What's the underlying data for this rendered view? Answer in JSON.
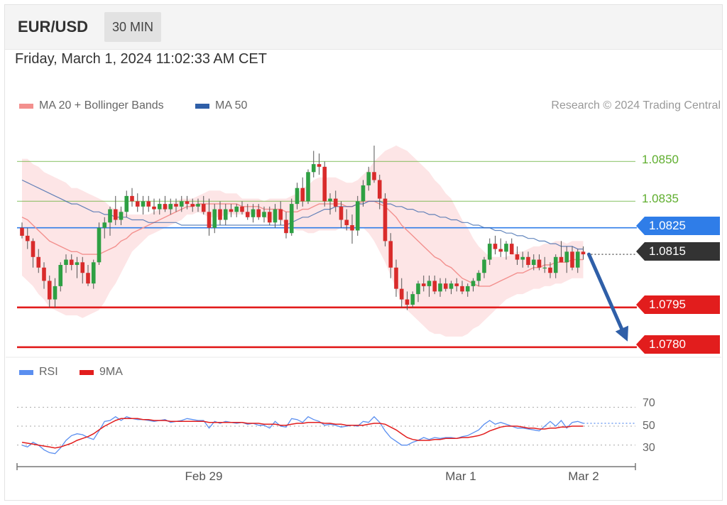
{
  "header": {
    "symbol": "EUR/USD",
    "timeframe": "30 MIN"
  },
  "datetime": "Friday, March 1, 2024 11:02:33 AM CET",
  "legend": {
    "ma20_label": "MA 20 + Bollinger Bands",
    "ma50_label": "MA 50",
    "credit": "Research © 2024 Trading Central"
  },
  "colors": {
    "ma20": "#f3908e",
    "ma50": "#2f5fa8",
    "bands": "#fde1e2",
    "bull": "#2ea043",
    "bear": "#d92b2b",
    "resistance": "#5fae2e",
    "pivot": "#2f7de8",
    "support": "#e21d1d",
    "current": "#333333",
    "rsi": "#5b8ff0",
    "rsi_ma": "#e21d1d"
  },
  "levels": {
    "resistance": [
      "1.0850",
      "1.0835"
    ],
    "pivot": "1.0825",
    "current": "1.0815",
    "support": [
      "1.0795",
      "1.0780"
    ]
  },
  "rsi_legend": {
    "rsi_label": "RSI",
    "ma_label": "9MA"
  },
  "rsi_levels": [
    "70",
    "50",
    "30"
  ],
  "x_ticks": [
    "Feb 29",
    "Mar 1",
    "Mar 2"
  ],
  "chart_data": {
    "type": "candlestick",
    "ylim": [
      1.0777,
      1.086
    ],
    "candles_ohlc": [
      [
        1.0825,
        1.0827,
        1.0821,
        1.0822
      ],
      [
        1.0822,
        1.0825,
        1.0817,
        1.082
      ],
      [
        1.082,
        1.0821,
        1.081,
        1.0814
      ],
      [
        1.0814,
        1.0817,
        1.0808,
        1.081
      ],
      [
        1.081,
        1.0812,
        1.0802,
        1.0805
      ],
      [
        1.0805,
        1.0807,
        1.0795,
        1.0798
      ],
      [
        1.0798,
        1.0806,
        1.0795,
        1.0803
      ],
      [
        1.0803,
        1.0812,
        1.0801,
        1.0811
      ],
      [
        1.0811,
        1.0815,
        1.0808,
        1.0813
      ],
      [
        1.0813,
        1.0815,
        1.0809,
        1.0811
      ],
      [
        1.0811,
        1.0814,
        1.0806,
        1.0812
      ],
      [
        1.0812,
        1.0814,
        1.0804,
        1.0808
      ],
      [
        1.0808,
        1.0811,
        1.0803,
        1.0804
      ],
      [
        1.0804,
        1.0813,
        1.0802,
        1.0812
      ],
      [
        1.0812,
        1.0827,
        1.0811,
        1.0825
      ],
      [
        1.0825,
        1.0829,
        1.0821,
        1.0827
      ],
      [
        1.0827,
        1.0833,
        1.0822,
        1.0832
      ],
      [
        1.0832,
        1.0837,
        1.0826,
        1.0828
      ],
      [
        1.0828,
        1.0833,
        1.0826,
        1.0831
      ],
      [
        1.0831,
        1.0839,
        1.0829,
        1.0837
      ],
      [
        1.0837,
        1.084,
        1.0833,
        1.0835
      ],
      [
        1.0835,
        1.0838,
        1.0831,
        1.0833
      ],
      [
        1.0833,
        1.0837,
        1.083,
        1.0835
      ],
      [
        1.0835,
        1.0837,
        1.0831,
        1.0833
      ],
      [
        1.0833,
        1.0836,
        1.083,
        1.0832
      ],
      [
        1.0832,
        1.0836,
        1.083,
        1.0834
      ],
      [
        1.0834,
        1.0837,
        1.0831,
        1.0832
      ],
      [
        1.0832,
        1.0836,
        1.083,
        1.0834
      ],
      [
        1.0834,
        1.0836,
        1.0831,
        1.0833
      ],
      [
        1.0833,
        1.0837,
        1.0831,
        1.0835
      ],
      [
        1.0835,
        1.0837,
        1.0832,
        1.0834
      ],
      [
        1.0834,
        1.0836,
        1.0831,
        1.0833
      ],
      [
        1.0833,
        1.0836,
        1.0831,
        1.0834
      ],
      [
        1.0834,
        1.0837,
        1.083,
        1.0831
      ],
      [
        1.0831,
        1.0836,
        1.0822,
        1.0825
      ],
      [
        1.0825,
        1.0834,
        1.0823,
        1.0832
      ],
      [
        1.0832,
        1.0835,
        1.0826,
        1.0828
      ],
      [
        1.0828,
        1.0834,
        1.0826,
        1.0832
      ],
      [
        1.0832,
        1.0834,
        1.0829,
        1.0831
      ],
      [
        1.0831,
        1.0834,
        1.0829,
        1.0833
      ],
      [
        1.0833,
        1.0835,
        1.083,
        1.0831
      ],
      [
        1.0831,
        1.0834,
        1.0828,
        1.0829
      ],
      [
        1.0829,
        1.0834,
        1.0827,
        1.0832
      ],
      [
        1.0832,
        1.0834,
        1.0828,
        1.0829
      ],
      [
        1.0829,
        1.0833,
        1.0827,
        1.0831
      ],
      [
        1.0831,
        1.0833,
        1.0826,
        1.0827
      ],
      [
        1.0827,
        1.0834,
        1.0825,
        1.0832
      ],
      [
        1.0832,
        1.0835,
        1.0826,
        1.0828
      ],
      [
        1.0828,
        1.0831,
        1.0821,
        1.0823
      ],
      [
        1.0823,
        1.0836,
        1.0822,
        1.0834
      ],
      [
        1.0834,
        1.0842,
        1.0832,
        1.084
      ],
      [
        1.084,
        1.0844,
        1.0833,
        1.0835
      ],
      [
        1.0835,
        1.0847,
        1.0834,
        1.0846
      ],
      [
        1.0846,
        1.0854,
        1.0844,
        1.0849
      ],
      [
        1.0849,
        1.0853,
        1.0845,
        1.0848
      ],
      [
        1.0848,
        1.085,
        1.0833,
        1.0835
      ],
      [
        1.0835,
        1.0838,
        1.083,
        1.0836
      ],
      [
        1.0836,
        1.0839,
        1.0831,
        1.0833
      ],
      [
        1.0833,
        1.0835,
        1.0825,
        1.0828
      ],
      [
        1.0828,
        1.0832,
        1.0824,
        1.0826
      ],
      [
        1.0826,
        1.083,
        1.0819,
        1.0824
      ],
      [
        1.0824,
        1.0837,
        1.0822,
        1.0835
      ],
      [
        1.0835,
        1.0843,
        1.0833,
        1.0841
      ],
      [
        1.0841,
        1.0848,
        1.0839,
        1.0846
      ],
      [
        1.0846,
        1.0856,
        1.0842,
        1.0843
      ],
      [
        1.0843,
        1.0845,
        1.0832,
        1.0836
      ],
      [
        1.0836,
        1.0838,
        1.0818,
        1.082
      ],
      [
        1.082,
        1.0823,
        1.0806,
        1.081
      ],
      [
        1.081,
        1.0813,
        1.0799,
        1.0802
      ],
      [
        1.0802,
        1.0806,
        1.0795,
        1.0798
      ],
      [
        1.0798,
        1.0801,
        1.0794,
        1.0796
      ],
      [
        1.0796,
        1.0801,
        1.0795,
        1.08
      ],
      [
        1.08,
        1.0805,
        1.0797,
        1.0804
      ],
      [
        1.0804,
        1.0807,
        1.0801,
        1.0803
      ],
      [
        1.0803,
        1.0807,
        1.0799,
        1.0805
      ],
      [
        1.0805,
        1.0807,
        1.08,
        1.0801
      ],
      [
        1.0801,
        1.0806,
        1.0799,
        1.0804
      ],
      [
        1.0804,
        1.0806,
        1.0801,
        1.0802
      ],
      [
        1.0802,
        1.0805,
        1.08,
        1.0804
      ],
      [
        1.0804,
        1.0806,
        1.0801,
        1.0803
      ],
      [
        1.0803,
        1.0805,
        1.08,
        1.0801
      ],
      [
        1.0801,
        1.0804,
        1.0799,
        1.0803
      ],
      [
        1.0803,
        1.0806,
        1.0801,
        1.0805
      ],
      [
        1.0805,
        1.0809,
        1.0803,
        1.0808
      ],
      [
        1.0808,
        1.0814,
        1.0806,
        1.0813
      ],
      [
        1.0813,
        1.0821,
        1.0811,
        1.0819
      ],
      [
        1.0819,
        1.0822,
        1.0815,
        1.0817
      ],
      [
        1.0817,
        1.0821,
        1.0814,
        1.0816
      ],
      [
        1.0816,
        1.082,
        1.0813,
        1.0819
      ],
      [
        1.0819,
        1.0821,
        1.0815,
        1.0815
      ],
      [
        1.0815,
        1.0818,
        1.0811,
        1.0813
      ],
      [
        1.0813,
        1.0816,
        1.081,
        1.0814
      ],
      [
        1.0814,
        1.0816,
        1.081,
        1.0811
      ],
      [
        1.0811,
        1.0815,
        1.0809,
        1.0813
      ],
      [
        1.0813,
        1.0815,
        1.0809,
        1.081
      ],
      [
        1.081,
        1.0814,
        1.0808,
        1.081
      ],
      [
        1.081,
        1.0812,
        1.0806,
        1.0808
      ],
      [
        1.0808,
        1.0815,
        1.0806,
        1.0814
      ],
      [
        1.0814,
        1.082,
        1.0812,
        1.0812
      ],
      [
        1.0812,
        1.0818,
        1.0808,
        1.0816
      ],
      [
        1.0816,
        1.0818,
        1.0809,
        1.081
      ],
      [
        1.081,
        1.0817,
        1.0808,
        1.0816
      ],
      [
        1.0816,
        1.0818,
        1.0813,
        1.0815
      ]
    ],
    "ma20": [
      1.0829,
      1.0828,
      1.0826,
      1.0824,
      1.0822,
      1.082,
      1.0819,
      1.0818,
      1.0817,
      1.0816,
      1.0816,
      1.0815,
      1.0815,
      1.0815,
      1.0815,
      1.0816,
      1.0817,
      1.0818,
      1.082,
      1.0821,
      1.0823,
      1.0824,
      1.0825,
      1.0826,
      1.0827,
      1.0828,
      1.0829,
      1.083,
      1.0831,
      1.0832,
      1.0833,
      1.0833,
      1.0834,
      1.0834,
      1.0834,
      1.0834,
      1.0834,
      1.0834,
      1.0834,
      1.0834,
      1.0833,
      1.0833,
      1.0833,
      1.0833,
      1.0832,
      1.0832,
      1.0832,
      1.0832,
      1.0831,
      1.0831,
      1.0831,
      1.0832,
      1.0832,
      1.0833,
      1.0834,
      1.0834,
      1.0834,
      1.0834,
      1.0834,
      1.0833,
      1.0833,
      1.0834,
      1.0835,
      1.0835,
      1.0835,
      1.0834,
      1.0833,
      1.0831,
      1.0829,
      1.0826,
      1.0824,
      1.0822,
      1.082,
      1.0818,
      1.0816,
      1.0814,
      1.0813,
      1.0811,
      1.081,
      1.0808,
      1.0806,
      1.0805,
      1.0804,
      1.0803,
      1.0803,
      1.0803,
      1.0804,
      1.0805,
      1.0806,
      1.0807,
      1.0808,
      1.0808,
      1.0809,
      1.081,
      1.081,
      1.0811,
      1.0811,
      1.0812,
      1.0812,
      1.0812,
      1.0813,
      1.0813,
      1.0813
    ],
    "ma50": [
      1.0843,
      1.0842,
      1.0841,
      1.084,
      1.0839,
      1.0838,
      1.0837,
      1.0836,
      1.0835,
      1.0834,
      1.0834,
      1.0833,
      1.0832,
      1.0831,
      1.0831,
      1.083,
      1.083,
      1.0829,
      1.0829,
      1.0829,
      1.0828,
      1.0828,
      1.0828,
      1.0827,
      1.0827,
      1.0827,
      1.0827,
      1.0827,
      1.0827,
      1.0826,
      1.0826,
      1.0826,
      1.0826,
      1.0826,
      1.0826,
      1.0826,
      1.0826,
      1.0826,
      1.0826,
      1.0826,
      1.0826,
      1.0826,
      1.0826,
      1.0826,
      1.0826,
      1.0826,
      1.0826,
      1.0826,
      1.0826,
      1.0827,
      1.0828,
      1.0829,
      1.0829,
      1.083,
      1.0831,
      1.0832,
      1.0832,
      1.0833,
      1.0833,
      1.0833,
      1.0833,
      1.0834,
      1.0834,
      1.0835,
      1.0835,
      1.0835,
      1.0834,
      1.0834,
      1.0833,
      1.0833,
      1.0832,
      1.0832,
      1.0831,
      1.0831,
      1.083,
      1.083,
      1.0829,
      1.0829,
      1.0828,
      1.0828,
      1.0827,
      1.0827,
      1.0826,
      1.0826,
      1.0825,
      1.0825,
      1.0824,
      1.0824,
      1.0823,
      1.0823,
      1.0822,
      1.0822,
      1.0821,
      1.0821,
      1.082,
      1.082,
      1.0819,
      1.0819,
      1.0818,
      1.0818,
      1.0818,
      1.0817,
      1.0817
    ],
    "band_halfwidth": [
      0.0022,
      0.0023,
      0.0023,
      0.0024,
      0.0024,
      0.0025,
      0.0025,
      0.0025,
      0.0025,
      0.0024,
      0.0024,
      0.0024,
      0.0023,
      0.0022,
      0.0021,
      0.0019,
      0.0016,
      0.0014,
      0.0012,
      0.0009,
      0.0007,
      0.0006,
      0.0005,
      0.0004,
      0.0004,
      0.0004,
      0.0004,
      0.0004,
      0.0004,
      0.0004,
      0.0003,
      0.0003,
      0.0003,
      0.0004,
      0.0005,
      0.0005,
      0.0005,
      0.0004,
      0.0004,
      0.0004,
      0.0003,
      0.0003,
      0.0003,
      0.0003,
      0.0003,
      0.0004,
      0.0004,
      0.0004,
      0.0005,
      0.0006,
      0.0007,
      0.0008,
      0.0009,
      0.001,
      0.001,
      0.001,
      0.001,
      0.001,
      0.0009,
      0.0009,
      0.0009,
      0.0009,
      0.001,
      0.0012,
      0.0015,
      0.0018,
      0.0021,
      0.0024,
      0.0027,
      0.0029,
      0.003,
      0.003,
      0.003,
      0.003,
      0.003,
      0.0029,
      0.0028,
      0.0027,
      0.0026,
      0.0024,
      0.0022,
      0.002,
      0.0017,
      0.0015,
      0.0013,
      0.0011,
      0.001,
      0.0009,
      0.0008,
      0.0008,
      0.0008,
      0.0008,
      0.0008,
      0.0008,
      0.0008,
      0.0008,
      0.0008,
      0.0008,
      0.0008,
      0.0007,
      0.0007,
      0.0007,
      0.0007
    ],
    "forecast_target": 1.078,
    "rsi": {
      "ylim": [
        20,
        80
      ],
      "rsi": [
        30,
        28,
        33,
        30,
        25,
        22,
        21,
        27,
        35,
        40,
        42,
        41,
        38,
        36,
        45,
        55,
        56,
        60,
        56,
        60,
        58,
        57,
        57,
        56,
        55,
        56,
        57,
        54,
        55,
        56,
        58,
        57,
        56,
        56,
        48,
        55,
        53,
        55,
        54,
        53,
        54,
        52,
        53,
        51,
        51,
        48,
        55,
        50,
        49,
        58,
        57,
        54,
        60,
        57,
        55,
        51,
        52,
        51,
        49,
        50,
        51,
        50,
        55,
        54,
        60,
        54,
        45,
        38,
        34,
        30,
        30,
        33,
        35,
        38,
        36,
        38,
        37,
        38,
        38,
        37,
        39,
        40,
        43,
        46,
        52,
        56,
        52,
        54,
        52,
        50,
        48,
        48,
        47,
        46,
        45,
        50,
        55,
        50,
        56,
        48,
        54,
        55,
        53
      ],
      "rsi_ma": [
        33,
        32,
        31,
        30,
        29,
        28,
        27,
        28,
        30,
        32,
        35,
        37,
        39,
        42,
        46,
        50,
        53,
        56,
        58,
        58,
        58,
        58,
        57,
        57,
        56,
        56,
        56,
        55,
        55,
        55,
        55,
        55,
        55,
        55,
        54,
        54,
        54,
        54,
        54,
        54,
        54,
        53,
        53,
        53,
        52,
        52,
        52,
        51,
        51,
        52,
        53,
        53,
        54,
        54,
        54,
        53,
        53,
        52,
        52,
        51,
        51,
        51,
        51,
        52,
        53,
        53,
        52,
        49,
        46,
        42,
        38,
        36,
        35,
        35,
        35,
        36,
        36,
        37,
        37,
        37,
        38,
        38,
        39,
        40,
        42,
        45,
        47,
        49,
        50,
        50,
        50,
        49,
        48,
        48,
        47,
        47,
        48,
        48,
        49,
        49,
        50,
        50,
        50
      ]
    }
  }
}
